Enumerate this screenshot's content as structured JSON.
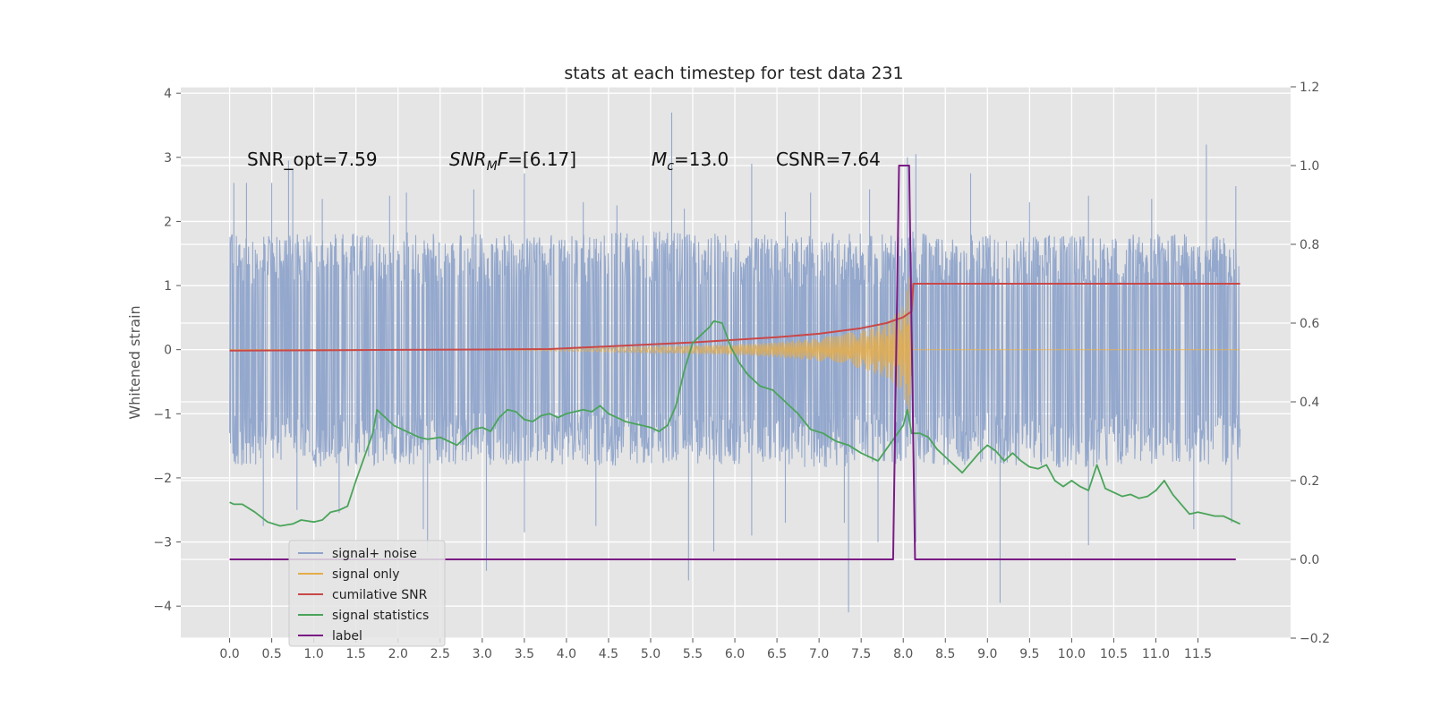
{
  "chart_data": {
    "type": "line",
    "title": "stats at each timestep for test data 231",
    "ylabel_left": "Whitened strain",
    "xlabel": "",
    "x_ticks": [
      "0.0",
      "0.5",
      "1.0",
      "1.5",
      "2.0",
      "2.5",
      "3.0",
      "3.5",
      "4.0",
      "4.5",
      "5.0",
      "5.5",
      "6.0",
      "6.5",
      "7.0",
      "7.5",
      "8.0",
      "8.5",
      "9.0",
      "9.5",
      "10.0",
      "10.5",
      "11.0",
      "11.5"
    ],
    "x_tick_values": [
      0,
      0.5,
      1,
      1.5,
      2,
      2.5,
      3,
      3.5,
      4,
      4.5,
      5,
      5.5,
      6,
      6.5,
      7,
      7.5,
      8,
      8.5,
      9,
      9.5,
      10,
      10.5,
      11,
      11.5
    ],
    "xlim": [
      -0.58,
      12.6
    ],
    "ylim_left": [
      -4.5,
      4.1
    ],
    "y_ticks_left": [
      "4",
      "3",
      "2",
      "1",
      "0",
      "−1",
      "−2",
      "−3",
      "−4"
    ],
    "y_tick_values_left": [
      4,
      3,
      2,
      1,
      0,
      -1,
      -2,
      -3,
      -4
    ],
    "ylim_right": [
      -0.2,
      1.2
    ],
    "y_ticks_right": [
      "1.2",
      "1.0",
      "0.8",
      "0.6",
      "0.4",
      "0.2",
      "0.0",
      "−0.2"
    ],
    "y_tick_values_right": [
      1.2,
      1.0,
      0.8,
      0.6,
      0.4,
      0.2,
      0.0,
      -0.2
    ],
    "grid": true,
    "legend_position": "lower-left",
    "annotations": [
      {
        "text": "SNR_opt=7.59",
        "x": 0.2,
        "y": 2.85
      },
      {
        "text": "SNR_MF=[6.17]",
        "x": 2.6,
        "y": 2.85
      },
      {
        "text": "M_c=13.0",
        "x": 5.0,
        "y": 2.85
      },
      {
        "text": "CSNR=7.64",
        "x": 6.5,
        "y": 2.85
      }
    ],
    "series": [
      {
        "name": "signal+ noise",
        "color": "#8fa4cb",
        "axis": "left",
        "x_range": [
          0,
          12.0
        ],
        "envelope_upper": [
          [
            0,
            1.8
          ],
          [
            1,
            1.8
          ],
          [
            2,
            1.85
          ],
          [
            3,
            1.8
          ],
          [
            4,
            1.8
          ],
          [
            5,
            1.85
          ],
          [
            6,
            1.8
          ],
          [
            7,
            1.8
          ],
          [
            8,
            1.85
          ],
          [
            9,
            1.8
          ],
          [
            10,
            1.8
          ],
          [
            11,
            1.8
          ],
          [
            12,
            1.8
          ]
        ],
        "envelope_lower": [
          [
            0,
            -1.8
          ],
          [
            1,
            -1.85
          ],
          [
            2,
            -1.8
          ],
          [
            3,
            -1.8
          ],
          [
            4,
            -1.85
          ],
          [
            5,
            -1.8
          ],
          [
            6,
            -1.8
          ],
          [
            7,
            -1.85
          ],
          [
            8,
            -1.8
          ],
          [
            9,
            -1.8
          ],
          [
            10,
            -1.85
          ],
          [
            11,
            -1.8
          ],
          [
            12,
            -1.8
          ]
        ],
        "peaks_up": [
          [
            0.05,
            2.6
          ],
          [
            0.2,
            2.6
          ],
          [
            0.5,
            2.6
          ],
          [
            0.7,
            2.95
          ],
          [
            0.75,
            2.8
          ],
          [
            1.1,
            2.35
          ],
          [
            1.9,
            2.4
          ],
          [
            2.1,
            2.45
          ],
          [
            2.9,
            2.5
          ],
          [
            3.5,
            2.75
          ],
          [
            4.2,
            2.3
          ],
          [
            4.6,
            2.25
          ],
          [
            5.25,
            3.7
          ],
          [
            5.4,
            2.2
          ],
          [
            6.2,
            2.9
          ],
          [
            6.6,
            2.15
          ],
          [
            6.9,
            2.45
          ],
          [
            7.6,
            2.5
          ],
          [
            8.05,
            3.0
          ],
          [
            8.15,
            3.05
          ],
          [
            8.8,
            2.75
          ],
          [
            9.5,
            2.3
          ],
          [
            10.2,
            2.4
          ],
          [
            10.95,
            2.35
          ],
          [
            11.6,
            3.2
          ],
          [
            11.95,
            2.55
          ]
        ],
        "peaks_down": [
          [
            0.4,
            -2.75
          ],
          [
            0.8,
            -2.5
          ],
          [
            1.3,
            -2.55
          ],
          [
            2.3,
            -2.8
          ],
          [
            2.35,
            -3.15
          ],
          [
            3.05,
            -3.45
          ],
          [
            3.5,
            -2.85
          ],
          [
            4.35,
            -2.75
          ],
          [
            5.45,
            -3.6
          ],
          [
            5.75,
            -3.15
          ],
          [
            6.2,
            -2.9
          ],
          [
            6.6,
            -2.7
          ],
          [
            7.3,
            -2.7
          ],
          [
            7.35,
            -4.1
          ],
          [
            7.7,
            -3.0
          ],
          [
            8.15,
            -3.0
          ],
          [
            9.15,
            -3.95
          ],
          [
            10.2,
            -3.05
          ],
          [
            11.45,
            -2.8
          ],
          [
            11.9,
            -2.7
          ]
        ]
      },
      {
        "name": "signal only",
        "color": "#e5ad4a",
        "axis": "left",
        "amplitude": [
          [
            0,
            0.002
          ],
          [
            3.0,
            0.006
          ],
          [
            4.0,
            0.025
          ],
          [
            5.0,
            0.05
          ],
          [
            6.0,
            0.08
          ],
          [
            6.5,
            0.12
          ],
          [
            7.0,
            0.18
          ],
          [
            7.5,
            0.3
          ],
          [
            7.8,
            0.45
          ],
          [
            8.0,
            0.7
          ],
          [
            8.08,
            1.2
          ],
          [
            8.11,
            0.02
          ],
          [
            12.0,
            0.02
          ]
        ]
      },
      {
        "name": "cumilative SNR",
        "color": "#c94848",
        "axis": "right",
        "points": [
          [
            0,
            0.53
          ],
          [
            1,
            0.531
          ],
          [
            2,
            0.532
          ],
          [
            3,
            0.533
          ],
          [
            3.8,
            0.534
          ],
          [
            4.5,
            0.541
          ],
          [
            5.5,
            0.551
          ],
          [
            6.5,
            0.564
          ],
          [
            7.0,
            0.573
          ],
          [
            7.5,
            0.587
          ],
          [
            7.8,
            0.6
          ],
          [
            8.0,
            0.615
          ],
          [
            8.1,
            0.63
          ],
          [
            8.12,
            0.7
          ],
          [
            9,
            0.7
          ],
          [
            10,
            0.7
          ],
          [
            11,
            0.7
          ],
          [
            12,
            0.7
          ]
        ]
      },
      {
        "name": "signal statistics",
        "color": "#4aa45a",
        "axis": "right",
        "points": [
          [
            0,
            0.145
          ],
          [
            0.05,
            0.14
          ],
          [
            0.15,
            0.14
          ],
          [
            0.3,
            0.12
          ],
          [
            0.45,
            0.095
          ],
          [
            0.6,
            0.085
          ],
          [
            0.75,
            0.09
          ],
          [
            0.85,
            0.1
          ],
          [
            1.0,
            0.095
          ],
          [
            1.1,
            0.1
          ],
          [
            1.2,
            0.12
          ],
          [
            1.3,
            0.125
          ],
          [
            1.4,
            0.135
          ],
          [
            1.5,
            0.2
          ],
          [
            1.6,
            0.26
          ],
          [
            1.7,
            0.32
          ],
          [
            1.75,
            0.38
          ],
          [
            1.85,
            0.36
          ],
          [
            1.95,
            0.34
          ],
          [
            2.05,
            0.33
          ],
          [
            2.15,
            0.32
          ],
          [
            2.25,
            0.31
          ],
          [
            2.35,
            0.305
          ],
          [
            2.5,
            0.31
          ],
          [
            2.6,
            0.3
          ],
          [
            2.7,
            0.29
          ],
          [
            2.8,
            0.31
          ],
          [
            2.9,
            0.33
          ],
          [
            3.0,
            0.335
          ],
          [
            3.1,
            0.325
          ],
          [
            3.2,
            0.36
          ],
          [
            3.3,
            0.38
          ],
          [
            3.4,
            0.375
          ],
          [
            3.5,
            0.355
          ],
          [
            3.6,
            0.35
          ],
          [
            3.7,
            0.365
          ],
          [
            3.8,
            0.37
          ],
          [
            3.9,
            0.36
          ],
          [
            4.0,
            0.37
          ],
          [
            4.1,
            0.375
          ],
          [
            4.2,
            0.38
          ],
          [
            4.3,
            0.375
          ],
          [
            4.4,
            0.39
          ],
          [
            4.5,
            0.37
          ],
          [
            4.6,
            0.36
          ],
          [
            4.7,
            0.35
          ],
          [
            4.8,
            0.345
          ],
          [
            4.9,
            0.34
          ],
          [
            5.0,
            0.335
          ],
          [
            5.1,
            0.325
          ],
          [
            5.2,
            0.34
          ],
          [
            5.3,
            0.39
          ],
          [
            5.4,
            0.48
          ],
          [
            5.5,
            0.55
          ],
          [
            5.6,
            0.57
          ],
          [
            5.7,
            0.59
          ],
          [
            5.75,
            0.605
          ],
          [
            5.85,
            0.6
          ],
          [
            5.95,
            0.54
          ],
          [
            6.05,
            0.5
          ],
          [
            6.15,
            0.47
          ],
          [
            6.3,
            0.44
          ],
          [
            6.45,
            0.43
          ],
          [
            6.6,
            0.4
          ],
          [
            6.75,
            0.37
          ],
          [
            6.9,
            0.33
          ],
          [
            7.05,
            0.32
          ],
          [
            7.2,
            0.3
          ],
          [
            7.35,
            0.29
          ],
          [
            7.5,
            0.27
          ],
          [
            7.6,
            0.26
          ],
          [
            7.7,
            0.25
          ],
          [
            7.8,
            0.28
          ],
          [
            7.9,
            0.31
          ],
          [
            8.0,
            0.34
          ],
          [
            8.05,
            0.38
          ],
          [
            8.1,
            0.32
          ],
          [
            8.2,
            0.32
          ],
          [
            8.3,
            0.31
          ],
          [
            8.4,
            0.28
          ],
          [
            8.5,
            0.26
          ],
          [
            8.6,
            0.24
          ],
          [
            8.7,
            0.22
          ],
          [
            8.8,
            0.245
          ],
          [
            8.9,
            0.27
          ],
          [
            9.0,
            0.29
          ],
          [
            9.1,
            0.275
          ],
          [
            9.2,
            0.25
          ],
          [
            9.3,
            0.27
          ],
          [
            9.4,
            0.25
          ],
          [
            9.5,
            0.235
          ],
          [
            9.6,
            0.23
          ],
          [
            9.7,
            0.24
          ],
          [
            9.8,
            0.2
          ],
          [
            9.9,
            0.185
          ],
          [
            10.0,
            0.2
          ],
          [
            10.1,
            0.185
          ],
          [
            10.2,
            0.175
          ],
          [
            10.3,
            0.24
          ],
          [
            10.4,
            0.18
          ],
          [
            10.5,
            0.17
          ],
          [
            10.6,
            0.16
          ],
          [
            10.7,
            0.165
          ],
          [
            10.8,
            0.155
          ],
          [
            10.9,
            0.16
          ],
          [
            11.0,
            0.175
          ],
          [
            11.1,
            0.2
          ],
          [
            11.2,
            0.165
          ],
          [
            11.3,
            0.14
          ],
          [
            11.4,
            0.115
          ],
          [
            11.5,
            0.12
          ],
          [
            11.6,
            0.115
          ],
          [
            11.7,
            0.11
          ],
          [
            11.8,
            0.11
          ],
          [
            11.9,
            0.1
          ],
          [
            12.0,
            0.09
          ]
        ]
      },
      {
        "name": "label",
        "color": "#7a1a85",
        "axis": "right",
        "points": [
          [
            0,
            0.0
          ],
          [
            7.88,
            0.0
          ],
          [
            7.95,
            1.0
          ],
          [
            8.07,
            1.0
          ],
          [
            8.14,
            0.0
          ],
          [
            11.95,
            0.0
          ]
        ]
      }
    ]
  }
}
